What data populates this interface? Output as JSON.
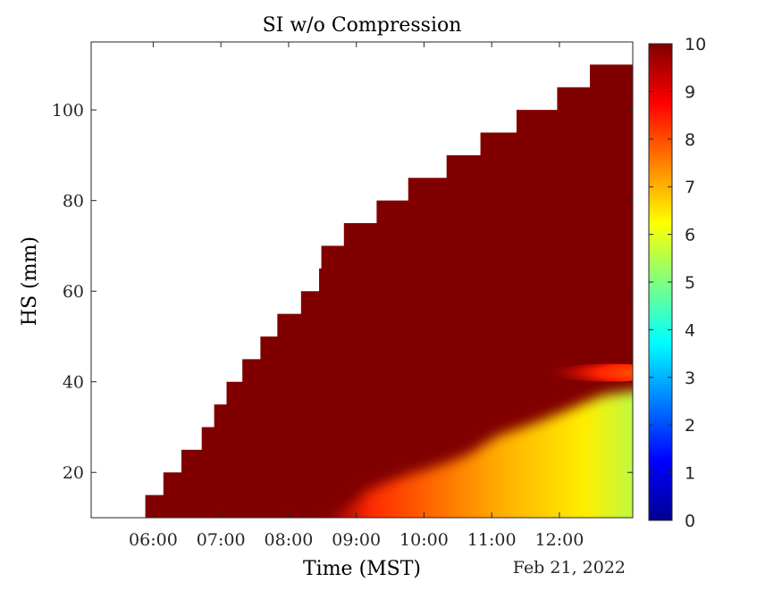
{
  "chart_data": {
    "type": "heatmap",
    "title": "SI w/o Compression",
    "xlabel": "Time (MST)",
    "ylabel": "HS (mm)",
    "date_label": "Feb 21, 2022",
    "xlim": [
      "05:05",
      "13:05"
    ],
    "ylim": [
      10,
      115
    ],
    "x_ticks": [
      "06:00",
      "07:00",
      "08:00",
      "09:00",
      "10:00",
      "11:00",
      "12:00"
    ],
    "y_ticks": [
      20,
      40,
      60,
      80,
      100
    ],
    "colorbar": {
      "colormap": "jet",
      "range": [
        0,
        10
      ],
      "ticks": [
        0,
        1,
        2,
        3,
        4,
        5,
        6,
        7,
        8,
        9,
        10
      ]
    },
    "snow_height_steps": [
      {
        "time": "05:53",
        "hs": 15
      },
      {
        "time": "06:09",
        "hs": 20
      },
      {
        "time": "06:25",
        "hs": 25
      },
      {
        "time": "06:43",
        "hs": 30
      },
      {
        "time": "06:54",
        "hs": 35
      },
      {
        "time": "07:05",
        "hs": 40
      },
      {
        "time": "07:19",
        "hs": 45
      },
      {
        "time": "07:35",
        "hs": 50
      },
      {
        "time": "07:50",
        "hs": 55
      },
      {
        "time": "08:11",
        "hs": 60
      },
      {
        "time": "08:27",
        "hs": 65
      },
      {
        "time": "08:29",
        "hs": 70
      },
      {
        "time": "08:49",
        "hs": 75
      },
      {
        "time": "09:18",
        "hs": 80
      },
      {
        "time": "09:46",
        "hs": 85
      },
      {
        "time": "10:20",
        "hs": 90
      },
      {
        "time": "10:50",
        "hs": 95
      },
      {
        "time": "11:22",
        "hs": 100
      },
      {
        "time": "11:58",
        "hs": 105
      },
      {
        "time": "12:27",
        "hs": 110
      }
    ],
    "stability_field": {
      "default_value": 10,
      "low_region_boundary": [
        {
          "time": "08:30",
          "hs": 10
        },
        {
          "time": "08:51",
          "hs": 12
        },
        {
          "time": "09:10",
          "hs": 16
        },
        {
          "time": "09:40",
          "hs": 19
        },
        {
          "time": "10:20",
          "hs": 22
        },
        {
          "time": "10:40",
          "hs": 24
        },
        {
          "time": "11:05",
          "hs": 28
        },
        {
          "time": "11:40",
          "hs": 31
        },
        {
          "time": "12:10",
          "hs": 34
        },
        {
          "time": "12:38",
          "hs": 37
        },
        {
          "time": "13:05",
          "hs": 38
        }
      ],
      "min_value_at_right_bottom": 5.5,
      "layer_at_40mm": {
        "start_time": "11:50",
        "min_value": 8.3
      }
    }
  }
}
